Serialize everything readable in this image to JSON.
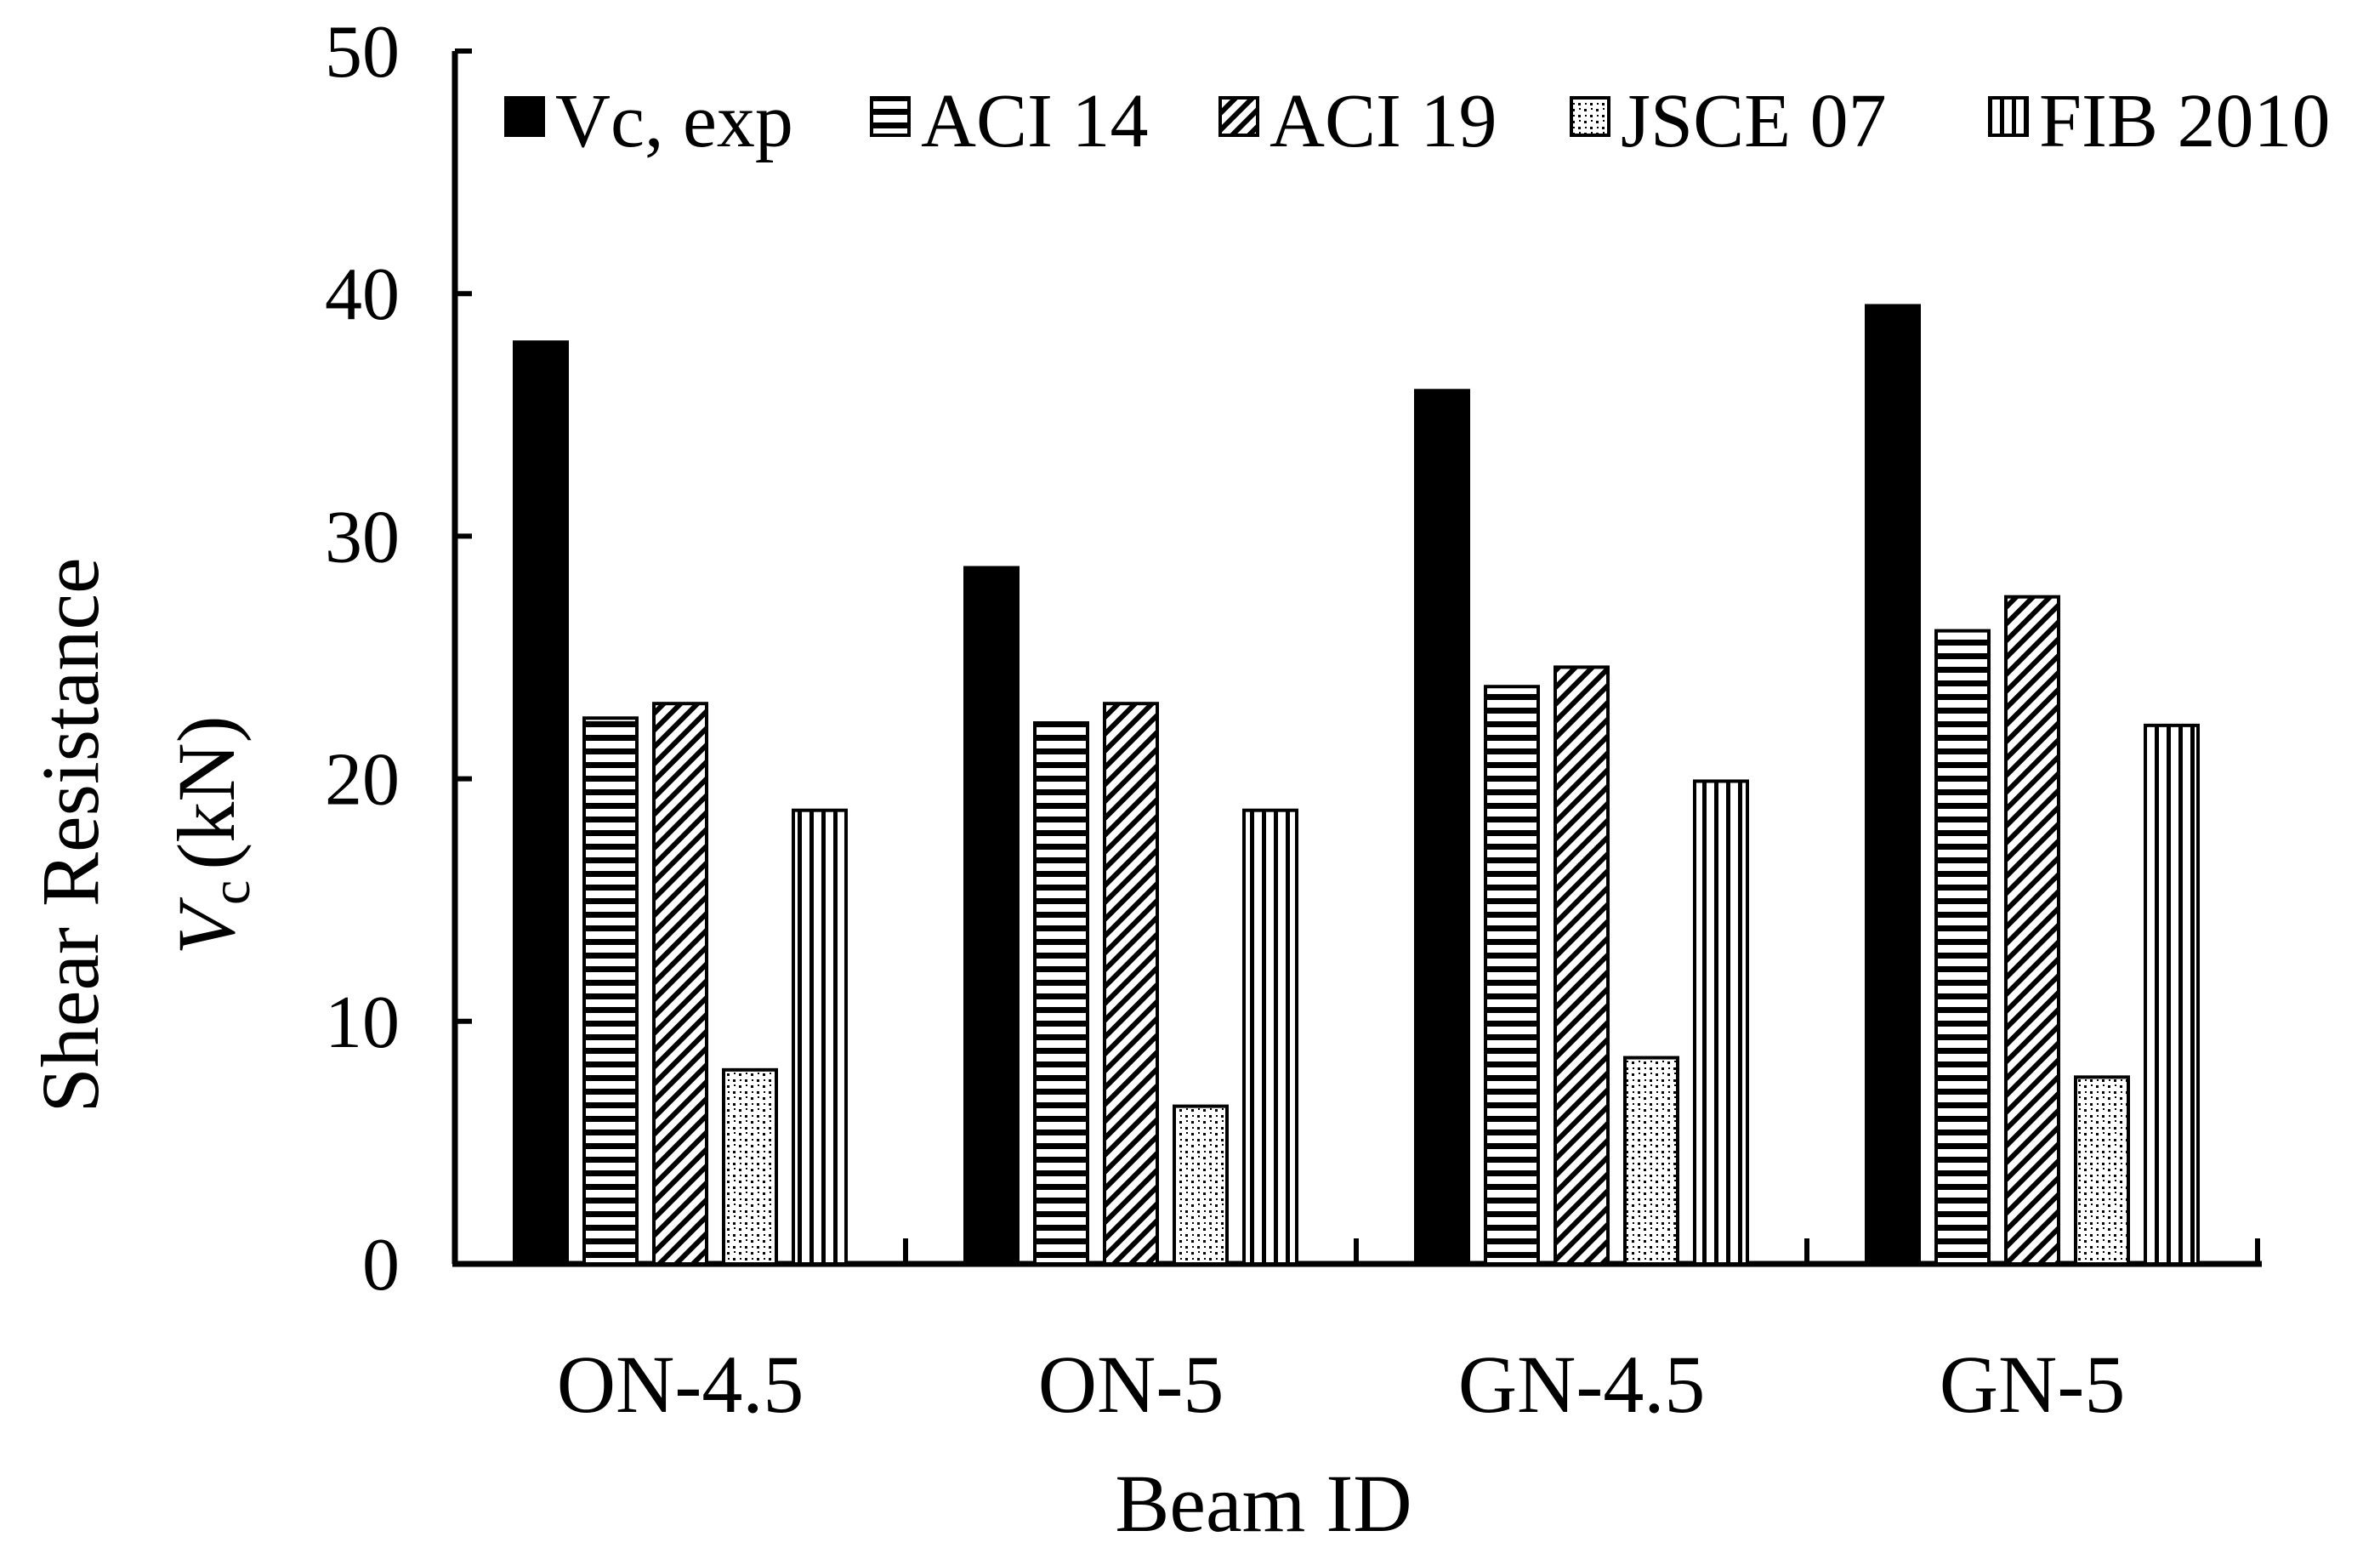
{
  "chart_data": {
    "type": "bar",
    "title": "",
    "xlabel": "Beam ID",
    "ylabel": {
      "line1": "Shear Resistance",
      "symbol": "V",
      "subscript": "c",
      "unit": "(kN)"
    },
    "ylim": [
      0,
      50
    ],
    "yticks": [
      "0",
      "10",
      "20",
      "30",
      "40",
      "50"
    ],
    "grid": false,
    "legend_position": "top",
    "categories": [
      "ON-4.5",
      "ON-5",
      "GN-4.5",
      "GN-5"
    ],
    "series": [
      {
        "name": "Vc, exp",
        "pattern": "solid",
        "values": [
          38.0,
          28.7,
          36.0,
          39.5
        ]
      },
      {
        "name": "ACI 14",
        "pattern": "horizontal",
        "values": [
          22.5,
          22.3,
          23.8,
          26.1
        ]
      },
      {
        "name": "ACI 19",
        "pattern": "diagonal",
        "values": [
          23.1,
          23.1,
          24.6,
          27.5
        ]
      },
      {
        "name": "JSCE 07",
        "pattern": "dotted",
        "values": [
          8.0,
          6.5,
          8.5,
          7.7
        ]
      },
      {
        "name": "FIB 2010",
        "pattern": "vertical",
        "values": [
          18.7,
          18.7,
          19.9,
          22.2
        ]
      }
    ]
  }
}
